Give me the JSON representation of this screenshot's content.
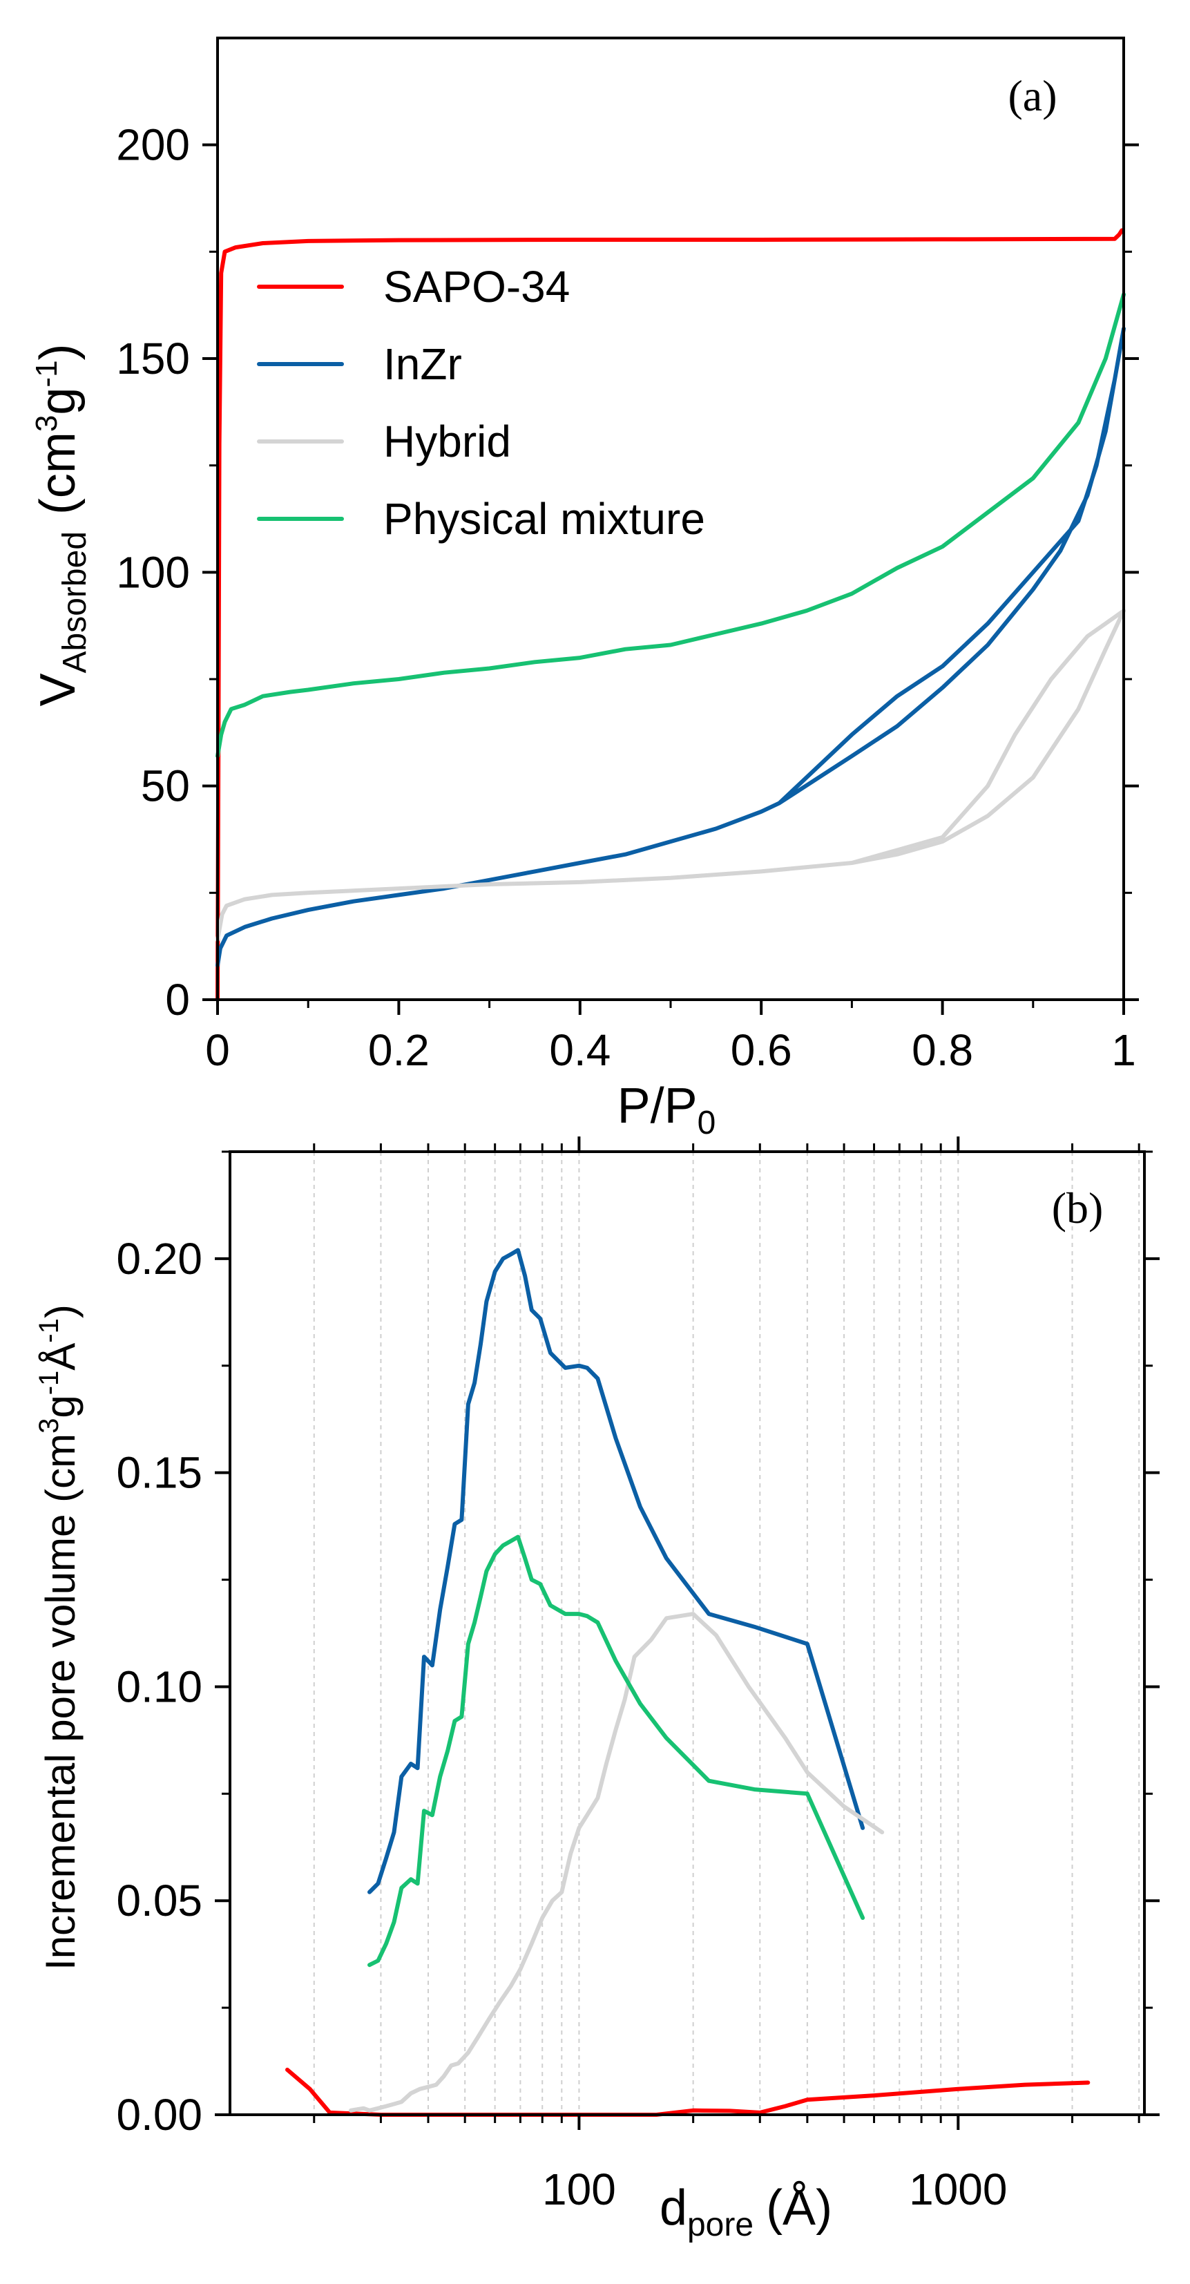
{
  "chart_data": [
    {
      "type": "line",
      "panel_label": "(a)",
      "xlabel": "P/P",
      "xlabel_sub": "0",
      "ylabel_main": "V",
      "ylabel_sub": "Absorbed",
      "ylabel_units": "(cm",
      "ylabel_sup1": "3",
      "ylabel_mid": "g",
      "ylabel_sup2": "-1",
      "ylabel_close": ")",
      "xlim": [
        0,
        1
      ],
      "ylim": [
        0,
        225
      ],
      "xticks": [
        0,
        0.2,
        0.4,
        0.6,
        0.8,
        1
      ],
      "xticklabels": [
        "0",
        "0.2",
        "0.4",
        "0.6",
        "0.8",
        "1"
      ],
      "yticks": [
        0,
        50,
        100,
        150,
        200
      ],
      "yticklabels": [
        "0",
        "50",
        "100",
        "150",
        "200"
      ],
      "grid": false,
      "legend_position": "upper-left",
      "series": [
        {
          "name": "SAPO-34",
          "color": "#ff0000",
          "points": [
            [
              0,
              0
            ],
            [
              0.001,
              60
            ],
            [
              0.002,
              130
            ],
            [
              0.004,
              170
            ],
            [
              0.008,
              175
            ],
            [
              0.02,
              176
            ],
            [
              0.05,
              177
            ],
            [
              0.1,
              177.5
            ],
            [
              0.2,
              177.7
            ],
            [
              0.4,
              177.8
            ],
            [
              0.6,
              177.8
            ],
            [
              0.8,
              177.9
            ],
            [
              0.99,
              178
            ],
            [
              0.995,
              179
            ],
            [
              0.998,
              180
            ]
          ]
        },
        {
          "name": "InZr",
          "color": "#0b5fa5",
          "points": [
            [
              0,
              8
            ],
            [
              0.003,
              12
            ],
            [
              0.01,
              15
            ],
            [
              0.03,
              17
            ],
            [
              0.06,
              19
            ],
            [
              0.1,
              21
            ],
            [
              0.15,
              23
            ],
            [
              0.2,
              24.5
            ],
            [
              0.25,
              26
            ],
            [
              0.3,
              28
            ],
            [
              0.35,
              30
            ],
            [
              0.4,
              32
            ],
            [
              0.45,
              34
            ],
            [
              0.5,
              37
            ],
            [
              0.55,
              40
            ],
            [
              0.6,
              44
            ],
            [
              0.62,
              46
            ],
            [
              0.7,
              57
            ],
            [
              0.75,
              64
            ],
            [
              0.8,
              73
            ],
            [
              0.85,
              83
            ],
            [
              0.9,
              96
            ],
            [
              0.93,
              105
            ],
            [
              0.96,
              118
            ],
            [
              0.98,
              133
            ],
            [
              1,
              157
            ],
            [
              0.99,
              145
            ],
            [
              0.97,
              125
            ],
            [
              0.95,
              112
            ],
            [
              0.9,
              100
            ],
            [
              0.85,
              88
            ],
            [
              0.8,
              78
            ],
            [
              0.75,
              71
            ],
            [
              0.7,
              62
            ],
            [
              0.65,
              52
            ],
            [
              0.62,
              46
            ]
          ]
        },
        {
          "name": "Hybrid",
          "color": "#d4d4d4",
          "points": [
            [
              0,
              14
            ],
            [
              0.005,
              20
            ],
            [
              0.01,
              22
            ],
            [
              0.03,
              23.5
            ],
            [
              0.06,
              24.5
            ],
            [
              0.1,
              25
            ],
            [
              0.2,
              26
            ],
            [
              0.3,
              27
            ],
            [
              0.4,
              27.5
            ],
            [
              0.5,
              28.5
            ],
            [
              0.6,
              30
            ],
            [
              0.7,
              32
            ],
            [
              0.75,
              34
            ],
            [
              0.8,
              37
            ],
            [
              0.85,
              43
            ],
            [
              0.9,
              52
            ],
            [
              0.95,
              68
            ],
            [
              0.98,
              82
            ],
            [
              1,
              91
            ],
            [
              0.98,
              88
            ],
            [
              0.96,
              85
            ],
            [
              0.92,
              75
            ],
            [
              0.88,
              62
            ],
            [
              0.85,
              50
            ],
            [
              0.8,
              38
            ],
            [
              0.75,
              35
            ],
            [
              0.7,
              32
            ]
          ]
        },
        {
          "name": "Physical mixture",
          "color": "#17c172",
          "points": [
            [
              0,
              57
            ],
            [
              0.004,
              62
            ],
            [
              0.008,
              65
            ],
            [
              0.015,
              68
            ],
            [
              0.03,
              69
            ],
            [
              0.05,
              71
            ],
            [
              0.08,
              72
            ],
            [
              0.1,
              72.5
            ],
            [
              0.15,
              74
            ],
            [
              0.2,
              75
            ],
            [
              0.25,
              76.5
            ],
            [
              0.3,
              77.5
            ],
            [
              0.35,
              79
            ],
            [
              0.4,
              80
            ],
            [
              0.45,
              82
            ],
            [
              0.5,
              83
            ],
            [
              0.55,
              85.5
            ],
            [
              0.6,
              88
            ],
            [
              0.65,
              91
            ],
            [
              0.7,
              95
            ],
            [
              0.75,
              101
            ],
            [
              0.8,
              106
            ],
            [
              0.85,
              114
            ],
            [
              0.9,
              122
            ],
            [
              0.95,
              135
            ],
            [
              0.98,
              150
            ],
            [
              1,
              165
            ]
          ]
        }
      ]
    },
    {
      "type": "line",
      "panel_label": "(b)",
      "xscale": "log",
      "xlabel_main": "d",
      "xlabel_sub": "pore",
      "xlabel_units": "(Å)",
      "ylabel_text": "Incremental pore volume (cm",
      "ylabel_sup1": "3",
      "ylabel_mid": "g",
      "ylabel_sup2": "-1",
      "ylabel_mid2": "Å",
      "ylabel_sup3": "-1",
      "ylabel_close": ")",
      "xlim": [
        12,
        3100
      ],
      "ylim": [
        0,
        0.225
      ],
      "xticks": [
        100,
        1000
      ],
      "xticklabels": [
        "100",
        "1000"
      ],
      "yticks": [
        0,
        0.05,
        0.1,
        0.15,
        0.2
      ],
      "yticklabels": [
        "0.00",
        "0.05",
        "0.10",
        "0.15",
        "0.20"
      ],
      "grid": true,
      "series": [
        {
          "name": "SAPO-34",
          "color": "#ff0000",
          "points": [
            [
              17,
              0.0105
            ],
            [
              19.5,
              0.006
            ],
            [
              22,
              0.0005
            ],
            [
              30,
              0
            ],
            [
              60,
              0
            ],
            [
              100,
              0
            ],
            [
              130,
              0
            ],
            [
              160,
              0
            ],
            [
              200,
              0.001
            ],
            [
              250,
              0.0009
            ],
            [
              300,
              0.0005
            ],
            [
              350,
              0.002
            ],
            [
              400,
              0.0035
            ],
            [
              600,
              0.0045
            ],
            [
              1000,
              0.006
            ],
            [
              1500,
              0.007
            ],
            [
              2200,
              0.0075
            ]
          ]
        },
        {
          "name": "InZr",
          "color": "#0b5fa5",
          "points": [
            [
              28,
              0.052
            ],
            [
              29.5,
              0.054
            ],
            [
              31,
              0.06
            ],
            [
              32.5,
              0.066
            ],
            [
              34,
              0.079
            ],
            [
              36,
              0.082
            ],
            [
              37.5,
              0.081
            ],
            [
              39,
              0.107
            ],
            [
              41,
              0.105
            ],
            [
              43,
              0.118
            ],
            [
              45,
              0.128
            ],
            [
              47,
              0.138
            ],
            [
              49,
              0.139
            ],
            [
              51,
              0.166
            ],
            [
              53,
              0.171
            ],
            [
              55,
              0.18
            ],
            [
              57,
              0.19
            ],
            [
              60,
              0.197
            ],
            [
              63,
              0.2
            ],
            [
              66,
              0.201
            ],
            [
              69,
              0.202
            ],
            [
              72,
              0.196
            ],
            [
              75,
              0.188
            ],
            [
              79,
              0.186
            ],
            [
              84,
              0.178
            ],
            [
              92,
              0.1745
            ],
            [
              100,
              0.175
            ],
            [
              105,
              0.1745
            ],
            [
              112,
              0.172
            ],
            [
              125,
              0.158
            ],
            [
              145,
              0.142
            ],
            [
              170,
              0.13
            ],
            [
              220,
              0.117
            ],
            [
              290,
              0.114
            ],
            [
              400,
              0.11
            ],
            [
              560,
              0.067
            ]
          ]
        },
        {
          "name": "Hybrid",
          "color": "#d4d4d4",
          "points": [
            [
              25,
              0.001
            ],
            [
              27,
              0.0015
            ],
            [
              28,
              0.001
            ],
            [
              29.5,
              0.0015
            ],
            [
              31,
              0.002
            ],
            [
              32.5,
              0.0025
            ],
            [
              34,
              0.003
            ],
            [
              36,
              0.005
            ],
            [
              38,
              0.006
            ],
            [
              40,
              0.0065
            ],
            [
              42,
              0.007
            ],
            [
              44,
              0.009
            ],
            [
              46,
              0.0115
            ],
            [
              48,
              0.012
            ],
            [
              51,
              0.0145
            ],
            [
              54,
              0.018
            ],
            [
              58,
              0.0225
            ],
            [
              62,
              0.0265
            ],
            [
              66,
              0.03
            ],
            [
              70,
              0.034
            ],
            [
              75,
              0.04
            ],
            [
              80,
              0.046
            ],
            [
              85,
              0.05
            ],
            [
              90,
              0.052
            ],
            [
              95,
              0.061
            ],
            [
              100,
              0.067
            ],
            [
              105,
              0.07
            ],
            [
              112,
              0.074
            ],
            [
              118,
              0.082
            ],
            [
              125,
              0.09
            ],
            [
              132,
              0.097
            ],
            [
              140,
              0.107
            ],
            [
              155,
              0.111
            ],
            [
              170,
              0.116
            ],
            [
              200,
              0.117
            ],
            [
              230,
              0.112
            ],
            [
              280,
              0.1
            ],
            [
              350,
              0.088
            ],
            [
              400,
              0.08
            ],
            [
              500,
              0.072
            ],
            [
              630,
              0.066
            ]
          ]
        },
        {
          "name": "Physical mixture",
          "color": "#17c172",
          "points": [
            [
              28,
              0.035
            ],
            [
              29.5,
              0.036
            ],
            [
              31,
              0.04
            ],
            [
              32.5,
              0.045
            ],
            [
              34,
              0.053
            ],
            [
              36,
              0.055
            ],
            [
              37.5,
              0.054
            ],
            [
              39,
              0.071
            ],
            [
              41,
              0.07
            ],
            [
              43,
              0.079
            ],
            [
              45,
              0.085
            ],
            [
              47,
              0.092
            ],
            [
              49,
              0.093
            ],
            [
              51,
              0.11
            ],
            [
              53,
              0.115
            ],
            [
              55,
              0.121
            ],
            [
              57,
              0.127
            ],
            [
              60,
              0.131
            ],
            [
              63,
              0.133
            ],
            [
              66,
              0.134
            ],
            [
              69,
              0.135
            ],
            [
              72,
              0.13
            ],
            [
              75,
              0.125
            ],
            [
              79,
              0.124
            ],
            [
              84,
              0.119
            ],
            [
              92,
              0.117
            ],
            [
              100,
              0.117
            ],
            [
              105,
              0.1165
            ],
            [
              112,
              0.115
            ],
            [
              125,
              0.106
            ],
            [
              145,
              0.096
            ],
            [
              170,
              0.088
            ],
            [
              220,
              0.078
            ],
            [
              290,
              0.076
            ],
            [
              400,
              0.075
            ],
            [
              560,
              0.046
            ]
          ]
        }
      ]
    }
  ]
}
